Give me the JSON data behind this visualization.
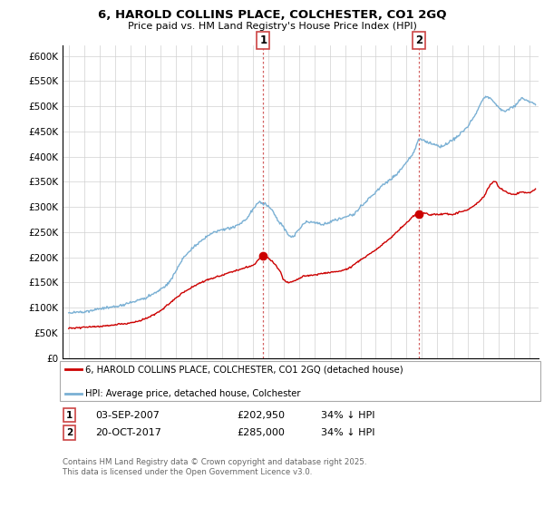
{
  "title": "6, HAROLD COLLINS PLACE, COLCHESTER, CO1 2GQ",
  "subtitle": "Price paid vs. HM Land Registry's House Price Index (HPI)",
  "legend_line1": "6, HAROLD COLLINS PLACE, COLCHESTER, CO1 2GQ (detached house)",
  "legend_line2": "HPI: Average price, detached house, Colchester",
  "annotation1_date": "03-SEP-2007",
  "annotation1_price": "£202,950",
  "annotation1_hpi": "34% ↓ HPI",
  "annotation2_date": "20-OCT-2017",
  "annotation2_price": "£285,000",
  "annotation2_hpi": "34% ↓ HPI",
  "footer": "Contains HM Land Registry data © Crown copyright and database right 2025.\nThis data is licensed under the Open Government Licence v3.0.",
  "ylim": [
    0,
    620000
  ],
  "yticks": [
    0,
    50000,
    100000,
    150000,
    200000,
    250000,
    300000,
    350000,
    400000,
    450000,
    500000,
    550000,
    600000
  ],
  "red_color": "#cc0000",
  "blue_color": "#7ab0d4",
  "vline_color": "#cc4444"
}
